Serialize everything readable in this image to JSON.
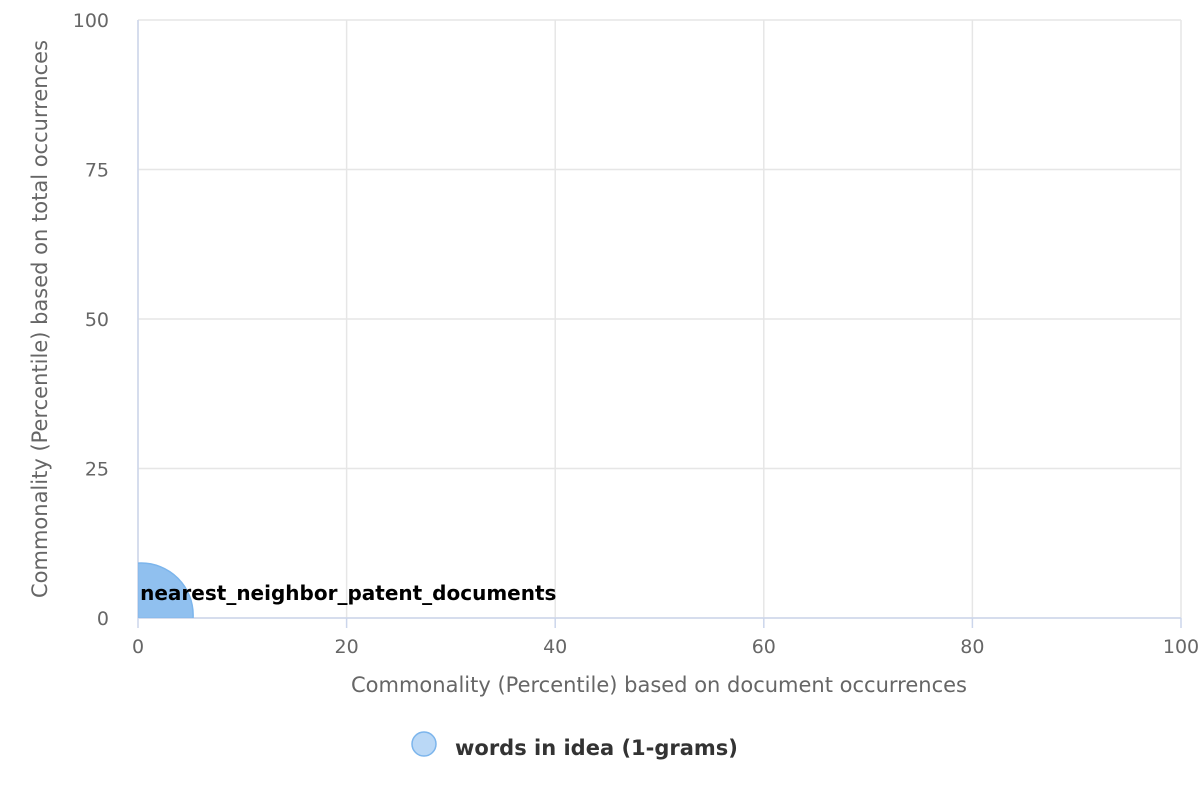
{
  "chart_data": {
    "type": "scatter",
    "xlabel": "Commonality (Percentile) based on document occurrences",
    "ylabel": "Commonality (Percentile) based on total occurrences",
    "xlim": [
      0,
      100
    ],
    "ylim": [
      0,
      100
    ],
    "xticks": [
      0,
      20,
      40,
      60,
      80,
      100
    ],
    "yticks": [
      0,
      25,
      50,
      75,
      100
    ],
    "grid": true,
    "legend_position": "bottom-center",
    "series": [
      {
        "name": "words in idea (1-grams)",
        "color": "#7cb5ec",
        "points": [
          {
            "x": 0.3,
            "y": 0.5,
            "label": "nearest_neighbor_patent_documents"
          }
        ]
      }
    ]
  }
}
